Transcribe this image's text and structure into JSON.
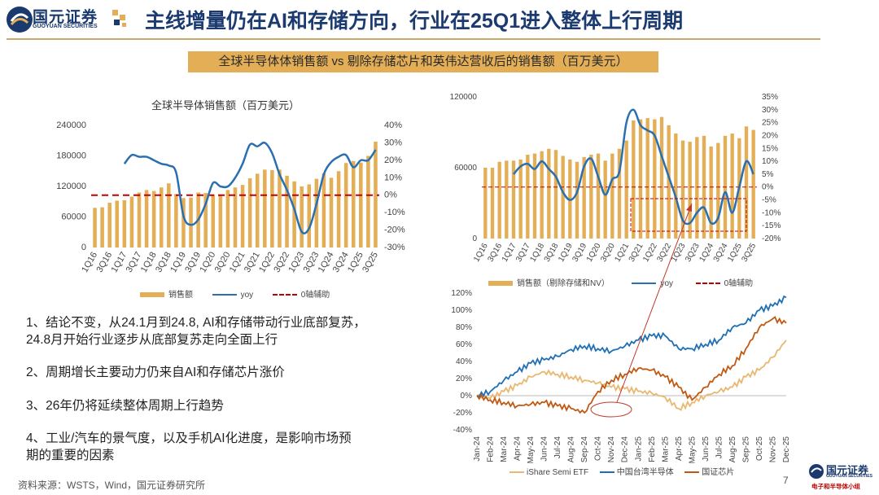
{
  "header": {
    "logo_cn": "国元证券",
    "logo_en": "GUOYUAN SECURITIES",
    "title": "主线增量仍在AI和存储方向，行业在25Q1进入整体上行周期",
    "subtitle": "全球半导体体销售额 vs 剔除存储芯片和英伟达营收后的销售额（百万美元）"
  },
  "points": [
    {
      "text": "1、结论不变，从24.1月到24.8, AI和存储带动行业底部复苏，"
    },
    {
      "text": "24.8月开始行业逐步从底部复苏走向全面上行"
    },
    {
      "text": "2、周期增长主要动力仍来自AI和存储芯片涨价"
    },
    {
      "text": "3、26年仍将延续整体周期上行趋势"
    },
    {
      "text": "4、工业/汽车的景气度，以及手机AI化进度，是影响市场预"
    },
    {
      "text": "期的重要的因素"
    }
  ],
  "footer": {
    "source": "资料来源：WSTS，Wind，国元证券研究所",
    "page": "7",
    "logo_cn": "国元证券",
    "logo_en": "GUOYUAN SECURITIES",
    "logo_tag": "电子和半导体小组"
  },
  "colors": {
    "bar": "#e3ae55",
    "line": "#2a6fb0",
    "zero": "#c00000",
    "etf": "#e8b870",
    "tw": "#1f6fb5",
    "cn": "#c05a12",
    "title": "#1b3a70"
  },
  "chart_data": [
    {
      "type": "bar",
      "title": "全球半导体销售额（百万美元）",
      "categories": [
        "1Q16",
        "2Q16",
        "3Q16",
        "4Q16",
        "1Q17",
        "2Q17",
        "3Q17",
        "4Q17",
        "1Q18",
        "2Q18",
        "3Q18",
        "4Q18",
        "1Q19",
        "2Q19",
        "3Q19",
        "4Q19",
        "1Q20",
        "2Q20",
        "3Q20",
        "4Q20",
        "1Q21",
        "2Q21",
        "3Q21",
        "4Q21",
        "1Q22",
        "2Q22",
        "3Q22",
        "4Q22",
        "1Q23",
        "2Q23",
        "3Q23",
        "4Q23",
        "1Q24",
        "2Q24",
        "3Q24",
        "4Q24",
        "1Q25",
        "2Q25",
        "3Q25"
      ],
      "x_tick_labels": [
        "1Q16",
        "3Q16",
        "1Q17",
        "3Q17",
        "1Q18",
        "3Q18",
        "1Q19",
        "3Q19",
        "1Q20",
        "3Q20",
        "1Q21",
        "3Q21",
        "1Q22",
        "3Q22",
        "1Q23",
        "3Q23",
        "1Q24",
        "3Q24",
        "1Q25",
        "3Q25"
      ],
      "series": [
        {
          "name": "销售额",
          "axis": "left",
          "values": [
            78000,
            79000,
            88000,
            92000,
            93000,
            100000,
            108000,
            113000,
            111000,
            118000,
            126000,
            105000,
            97000,
            98000,
            108000,
            107000,
            104000,
            103000,
            113000,
            118000,
            123000,
            136000,
            145000,
            153000,
            152000,
            153000,
            141000,
            130000,
            120000,
            124000,
            135000,
            146000,
            137000,
            150000,
            166000,
            170000,
            167000,
            180000,
            208000
          ]
        },
        {
          "name": "yoy",
          "axis": "right",
          "values": [
            null,
            null,
            null,
            null,
            18,
            23,
            22,
            22,
            20,
            18,
            17,
            13,
            -12,
            -17,
            -14,
            -5,
            7,
            5,
            5,
            10,
            18,
            29,
            28,
            30,
            24,
            12,
            3,
            -8,
            -21,
            -19,
            -5,
            12,
            19,
            22,
            23,
            16,
            20,
            20,
            26
          ]
        },
        {
          "name": "0轴辅助",
          "axis": "right",
          "values": "constant 0"
        }
      ],
      "yleft": {
        "ylim": [
          0,
          240000
        ],
        "ticks": [
          "0",
          "60000",
          "120000",
          "180000",
          "240000"
        ]
      },
      "yright": {
        "ylim": [
          -30,
          40
        ],
        "ticks": [
          "40%",
          "30%",
          "20%",
          "10%",
          "0%",
          "-10%",
          "-20%",
          "-30%"
        ]
      },
      "legend": [
        "销售额",
        "yoy",
        "0轴辅助"
      ]
    },
    {
      "type": "bar",
      "title": "",
      "categories": [
        "1Q16",
        "2Q16",
        "3Q16",
        "4Q16",
        "1Q17",
        "2Q17",
        "3Q17",
        "4Q17",
        "1Q18",
        "2Q18",
        "3Q18",
        "4Q18",
        "1Q19",
        "2Q19",
        "3Q19",
        "4Q19",
        "1Q20",
        "2Q20",
        "3Q20",
        "4Q20",
        "1Q21",
        "2Q21",
        "3Q21",
        "4Q21",
        "1Q22",
        "2Q22",
        "3Q22",
        "4Q22",
        "1Q23",
        "2Q23",
        "3Q23",
        "4Q23",
        "1Q24",
        "2Q24",
        "3Q24",
        "4Q24",
        "1Q25",
        "2Q25",
        "3Q25"
      ],
      "x_tick_labels": [
        "1Q16",
        "3Q16",
        "1Q17",
        "3Q17",
        "1Q18",
        "3Q18",
        "1Q19",
        "3Q19",
        "1Q20",
        "3Q20",
        "1Q21",
        "3Q21",
        "1Q22",
        "3Q22",
        "1Q23",
        "3Q23",
        "1Q24",
        "3Q24",
        "1Q25",
        "3Q25"
      ],
      "series": [
        {
          "name": "销售额（剔除存储和NV）",
          "axis": "left",
          "values": [
            60000,
            60000,
            65000,
            66000,
            66000,
            67000,
            71000,
            72000,
            74000,
            76000,
            75000,
            70000,
            67000,
            65000,
            69000,
            71000,
            72000,
            66000,
            72000,
            76000,
            83000,
            100000,
            101000,
            102000,
            101000,
            103000,
            96000,
            89000,
            83000,
            82000,
            86000,
            87000,
            78000,
            81000,
            87000,
            89000,
            85000,
            95000,
            92000
          ]
        },
        {
          "name": "yoy",
          "axis": "right",
          "values": [
            null,
            null,
            null,
            null,
            5,
            8,
            9,
            7,
            10,
            7,
            4,
            -2,
            -5,
            -2,
            8,
            11,
            4,
            -3,
            3,
            6,
            25,
            30,
            24,
            22,
            20,
            12,
            4,
            -4,
            -13,
            -14,
            -10,
            -8,
            -14,
            -12,
            -2,
            -10,
            0,
            10,
            5
          ]
        },
        {
          "name": "0轴辅助",
          "axis": "right",
          "values": "constant 0"
        }
      ],
      "yleft": {
        "ylim": [
          0,
          120000
        ],
        "ticks": [
          "0",
          "60000",
          "120000"
        ]
      },
      "yright": {
        "ylim": [
          -20,
          35
        ],
        "ticks": [
          "35%",
          "30%",
          "25%",
          "20%",
          "15%",
          "10%",
          "5%",
          "0%",
          "-5%",
          "-10%",
          "-15%",
          "-20%"
        ]
      },
      "legend": [
        "销售额（剔除存储和NV）",
        "yoy",
        "0轴辅助"
      ]
    },
    {
      "type": "line",
      "title": "",
      "x_tick_labels": [
        "Jan-24",
        "Feb-24",
        "Mar-24",
        "Apr-24",
        "May-24",
        "Jun-24",
        "Jul-24",
        "Aug-24",
        "Sep-24",
        "Oct-24",
        "Nov-24",
        "Dec-24",
        "Jan-25",
        "Feb-25",
        "Mar-25",
        "Apr-25",
        "May-25",
        "Jun-25",
        "Jul-25",
        "Aug-25",
        "Sep-25",
        "Oct-25",
        "Nov-25",
        "Dec-25"
      ],
      "series": [
        {
          "name": "iShare Semi ETF",
          "values": [
            0,
            -3,
            5,
            12,
            22,
            28,
            25,
            22,
            18,
            15,
            10,
            8,
            5,
            3,
            -2,
            -15,
            -8,
            0,
            5,
            10,
            22,
            30,
            45,
            65
          ]
        },
        {
          "name": "中国台湾半导体",
          "values": [
            0,
            5,
            18,
            28,
            38,
            42,
            46,
            54,
            58,
            55,
            52,
            58,
            65,
            70,
            70,
            55,
            55,
            60,
            65,
            80,
            85,
            100,
            105,
            115
          ]
        },
        {
          "name": "国证芯片",
          "values": [
            0,
            -5,
            -8,
            -12,
            -10,
            -8,
            -12,
            -15,
            -20,
            5,
            18,
            25,
            32,
            30,
            22,
            10,
            -5,
            10,
            25,
            35,
            55,
            80,
            90,
            85
          ]
        }
      ],
      "ylim": [
        -40,
        120
      ],
      "y_ticks": [
        "-40%",
        "-20%",
        "0%",
        "20%",
        "40%",
        "60%",
        "80%",
        "100%",
        "120%"
      ],
      "legend": [
        "iShare Semi ETF",
        "中国台湾半导体",
        "国证芯片"
      ]
    }
  ]
}
